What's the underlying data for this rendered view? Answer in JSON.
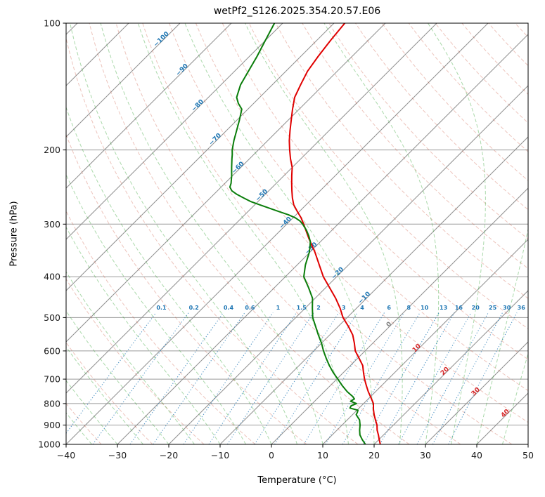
{
  "title": "wetPf2_S126.2025.354.20.57.E06",
  "axes": {
    "xlabel": "Temperature (°C)",
    "ylabel": "Pressure (hPa)",
    "x_ticks": [
      -40,
      -30,
      -20,
      -10,
      0,
      10,
      20,
      30,
      40,
      50
    ],
    "p_ticks": [
      100,
      200,
      300,
      400,
      500,
      600,
      700,
      800,
      900,
      1000
    ],
    "t_min": -40,
    "t_max": 50,
    "p_min": 100,
    "p_max": 1000
  },
  "chart_data": {
    "type": "line",
    "projection": "skew-t-log-p",
    "skew_deg": 45,
    "grid_color": "#9a9a9a",
    "series": [
      {
        "name": "temperature",
        "color": "#e00000",
        "width": 2,
        "points": [
          [
            1000,
            21.2
          ],
          [
            975,
            20.1
          ],
          [
            950,
            19.0
          ],
          [
            925,
            17.8
          ],
          [
            900,
            16.8
          ],
          [
            875,
            15.5
          ],
          [
            850,
            14.2
          ],
          [
            825,
            13.0
          ],
          [
            800,
            11.9
          ],
          [
            775,
            10.3
          ],
          [
            750,
            8.6
          ],
          [
            725,
            7.0
          ],
          [
            700,
            5.4
          ],
          [
            675,
            3.9
          ],
          [
            650,
            2.4
          ],
          [
            625,
            0.3
          ],
          [
            600,
            -1.9
          ],
          [
            575,
            -3.6
          ],
          [
            550,
            -5.5
          ],
          [
            525,
            -8.0
          ],
          [
            500,
            -10.8
          ],
          [
            475,
            -13.2
          ],
          [
            450,
            -16.0
          ],
          [
            425,
            -19.2
          ],
          [
            400,
            -22.6
          ],
          [
            375,
            -25.7
          ],
          [
            350,
            -29.0
          ],
          [
            325,
            -32.8
          ],
          [
            300,
            -36.7
          ],
          [
            290,
            -38.4
          ],
          [
            280,
            -40.4
          ],
          [
            270,
            -42.4
          ],
          [
            260,
            -44.0
          ],
          [
            250,
            -45.5
          ],
          [
            240,
            -47.0
          ],
          [
            230,
            -48.5
          ],
          [
            220,
            -50.0
          ],
          [
            210,
            -52.0
          ],
          [
            200,
            -53.9
          ],
          [
            190,
            -55.8
          ],
          [
            180,
            -57.6
          ],
          [
            170,
            -59.4
          ],
          [
            160,
            -61.3
          ],
          [
            150,
            -63.2
          ],
          [
            140,
            -64.5
          ],
          [
            130,
            -65.8
          ],
          [
            120,
            -66.6
          ],
          [
            110,
            -67.3
          ],
          [
            100,
            -67.9
          ]
        ]
      },
      {
        "name": "dewpoint",
        "color": "#0a7d0a",
        "width": 2,
        "points": [
          [
            1000,
            18.3
          ],
          [
            975,
            16.8
          ],
          [
            950,
            15.4
          ],
          [
            925,
            14.4
          ],
          [
            900,
            13.5
          ],
          [
            875,
            12.4
          ],
          [
            850,
            10.7
          ],
          [
            840,
            10.5
          ],
          [
            830,
            10.2
          ],
          [
            820,
            8.2
          ],
          [
            810,
            8.0
          ],
          [
            800,
            8.6
          ],
          [
            790,
            7.0
          ],
          [
            780,
            7.3
          ],
          [
            770,
            6.5
          ],
          [
            750,
            4.5
          ],
          [
            725,
            2.3
          ],
          [
            700,
            0.2
          ],
          [
            675,
            -2.0
          ],
          [
            650,
            -4.1
          ],
          [
            625,
            -6.1
          ],
          [
            600,
            -8.1
          ],
          [
            575,
            -10.0
          ],
          [
            550,
            -12.2
          ],
          [
            525,
            -14.4
          ],
          [
            500,
            -16.7
          ],
          [
            475,
            -18.6
          ],
          [
            450,
            -20.5
          ],
          [
            425,
            -23.3
          ],
          [
            400,
            -26.4
          ],
          [
            375,
            -28.4
          ],
          [
            350,
            -30.1
          ],
          [
            340,
            -31.0
          ],
          [
            330,
            -32.0
          ],
          [
            320,
            -33.4
          ],
          [
            310,
            -35.0
          ],
          [
            300,
            -36.9
          ],
          [
            295,
            -38.0
          ],
          [
            290,
            -39.5
          ],
          [
            285,
            -41.5
          ],
          [
            280,
            -44.0
          ],
          [
            275,
            -46.5
          ],
          [
            270,
            -49.0
          ],
          [
            265,
            -51.5
          ],
          [
            260,
            -53.5
          ],
          [
            255,
            -55.5
          ],
          [
            250,
            -57.2
          ],
          [
            245,
            -58.3
          ],
          [
            240,
            -58.8
          ],
          [
            235,
            -59.5
          ],
          [
            230,
            -60.2
          ],
          [
            225,
            -61.0
          ],
          [
            220,
            -61.8
          ],
          [
            215,
            -62.6
          ],
          [
            210,
            -63.4
          ],
          [
            205,
            -64.2
          ],
          [
            200,
            -65.1
          ],
          [
            190,
            -66.6
          ],
          [
            180,
            -68.0
          ],
          [
            170,
            -69.5
          ],
          [
            160,
            -71.2
          ],
          [
            155,
            -73.0
          ],
          [
            150,
            -74.5
          ],
          [
            140,
            -76.2
          ],
          [
            130,
            -77.3
          ],
          [
            120,
            -78.5
          ],
          [
            110,
            -80.0
          ],
          [
            100,
            -81.6
          ]
        ]
      }
    ],
    "isotherms": {
      "min": -160,
      "max": 50,
      "step": 10,
      "color": "#909090",
      "labels": [
        {
          "t": -100,
          "p": 110,
          "color": "#1f77b4"
        },
        {
          "t": -90,
          "p": 130,
          "color": "#1f77b4"
        },
        {
          "t": -80,
          "p": 158,
          "color": "#1f77b4"
        },
        {
          "t": -70,
          "p": 190,
          "color": "#1f77b4"
        },
        {
          "t": -60,
          "p": 222,
          "color": "#1f77b4"
        },
        {
          "t": -50,
          "p": 258,
          "color": "#1f77b4"
        },
        {
          "t": -40,
          "p": 300,
          "color": "#1f77b4"
        },
        {
          "t": -30,
          "p": 345,
          "color": "#1f77b4"
        },
        {
          "t": -20,
          "p": 395,
          "color": "#1f77b4"
        },
        {
          "t": -10,
          "p": 452,
          "color": "#1f77b4"
        },
        {
          "t": 0,
          "p": 523,
          "color": "#808080"
        },
        {
          "t": 10,
          "p": 595,
          "color": "#d62728"
        },
        {
          "t": 20,
          "p": 675,
          "color": "#d62728"
        },
        {
          "t": 30,
          "p": 755,
          "color": "#d62728"
        },
        {
          "t": 40,
          "p": 850,
          "color": "#d62728"
        }
      ]
    },
    "dry_adiabats": {
      "theta_min_k": 230,
      "theta_max_k": 460,
      "step_k": 10,
      "color": "#cc5540",
      "opacity": 0.35
    },
    "moist_adiabats": {
      "t0_min": -40,
      "t0_max": 65,
      "step": 5,
      "color": "#2ca02c",
      "opacity": 0.4
    },
    "mixing_ratio": {
      "values": [
        0.1,
        0.2,
        0.4,
        0.6,
        1,
        1.5,
        2,
        3,
        4,
        6,
        8,
        10,
        13,
        16,
        20,
        25,
        30,
        36
      ],
      "top_p": 487,
      "label_p": 473,
      "color": "#1f77b4",
      "opacity": 0.75
    }
  }
}
